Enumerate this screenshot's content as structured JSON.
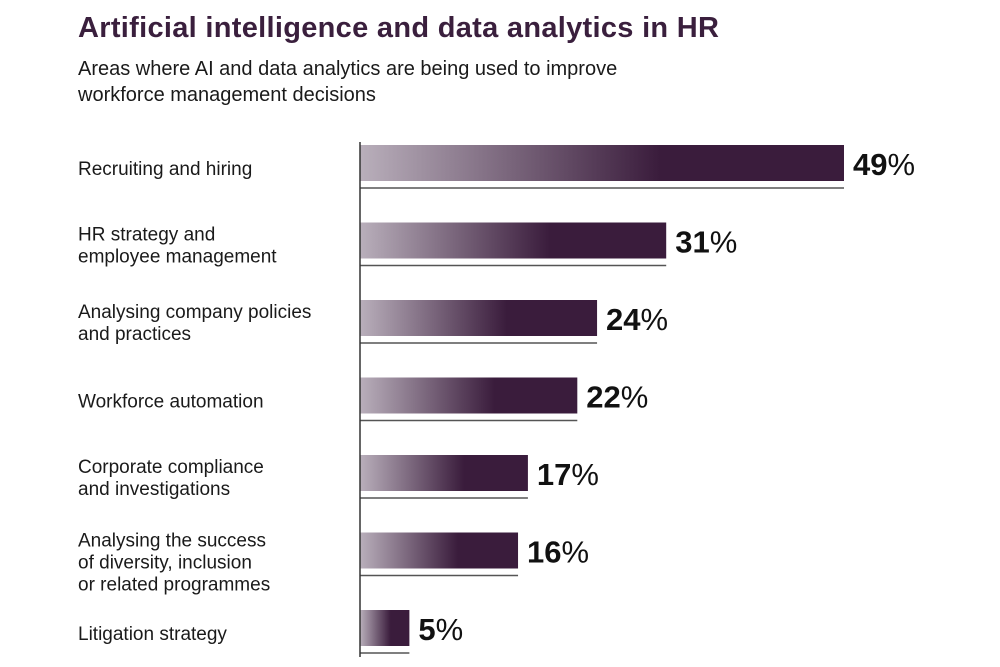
{
  "title": "Artificial intelligence and data analytics in HR",
  "subtitle": "Areas where AI and data analytics are being used to improve workforce management decisions",
  "colors": {
    "title": "#3a1f3d",
    "bar_dark": "#3a1c3c",
    "bar_light": "#b9afbb",
    "axis": "#333333",
    "underline": "#555555"
  },
  "chart_data": {
    "type": "bar",
    "orientation": "horizontal",
    "title": "Artificial intelligence and data analytics in HR",
    "subtitle": "Areas where AI and data analytics are being used to improve workforce management decisions",
    "xlabel": "",
    "ylabel": "",
    "xlim": [
      0,
      50
    ],
    "grid": false,
    "legend": "none",
    "value_suffix": "%",
    "categories": [
      [
        "Recruiting and hiring"
      ],
      [
        "HR strategy and",
        "employee management"
      ],
      [
        "Analysing company policies",
        "and practices"
      ],
      [
        "Workforce automation"
      ],
      [
        "Corporate compliance",
        "and investigations"
      ],
      [
        "Analysing the success",
        "of diversity, inclusion",
        "or related programmes"
      ],
      [
        "Litigation strategy"
      ]
    ],
    "values": [
      49,
      31,
      24,
      22,
      17,
      16,
      5
    ]
  }
}
